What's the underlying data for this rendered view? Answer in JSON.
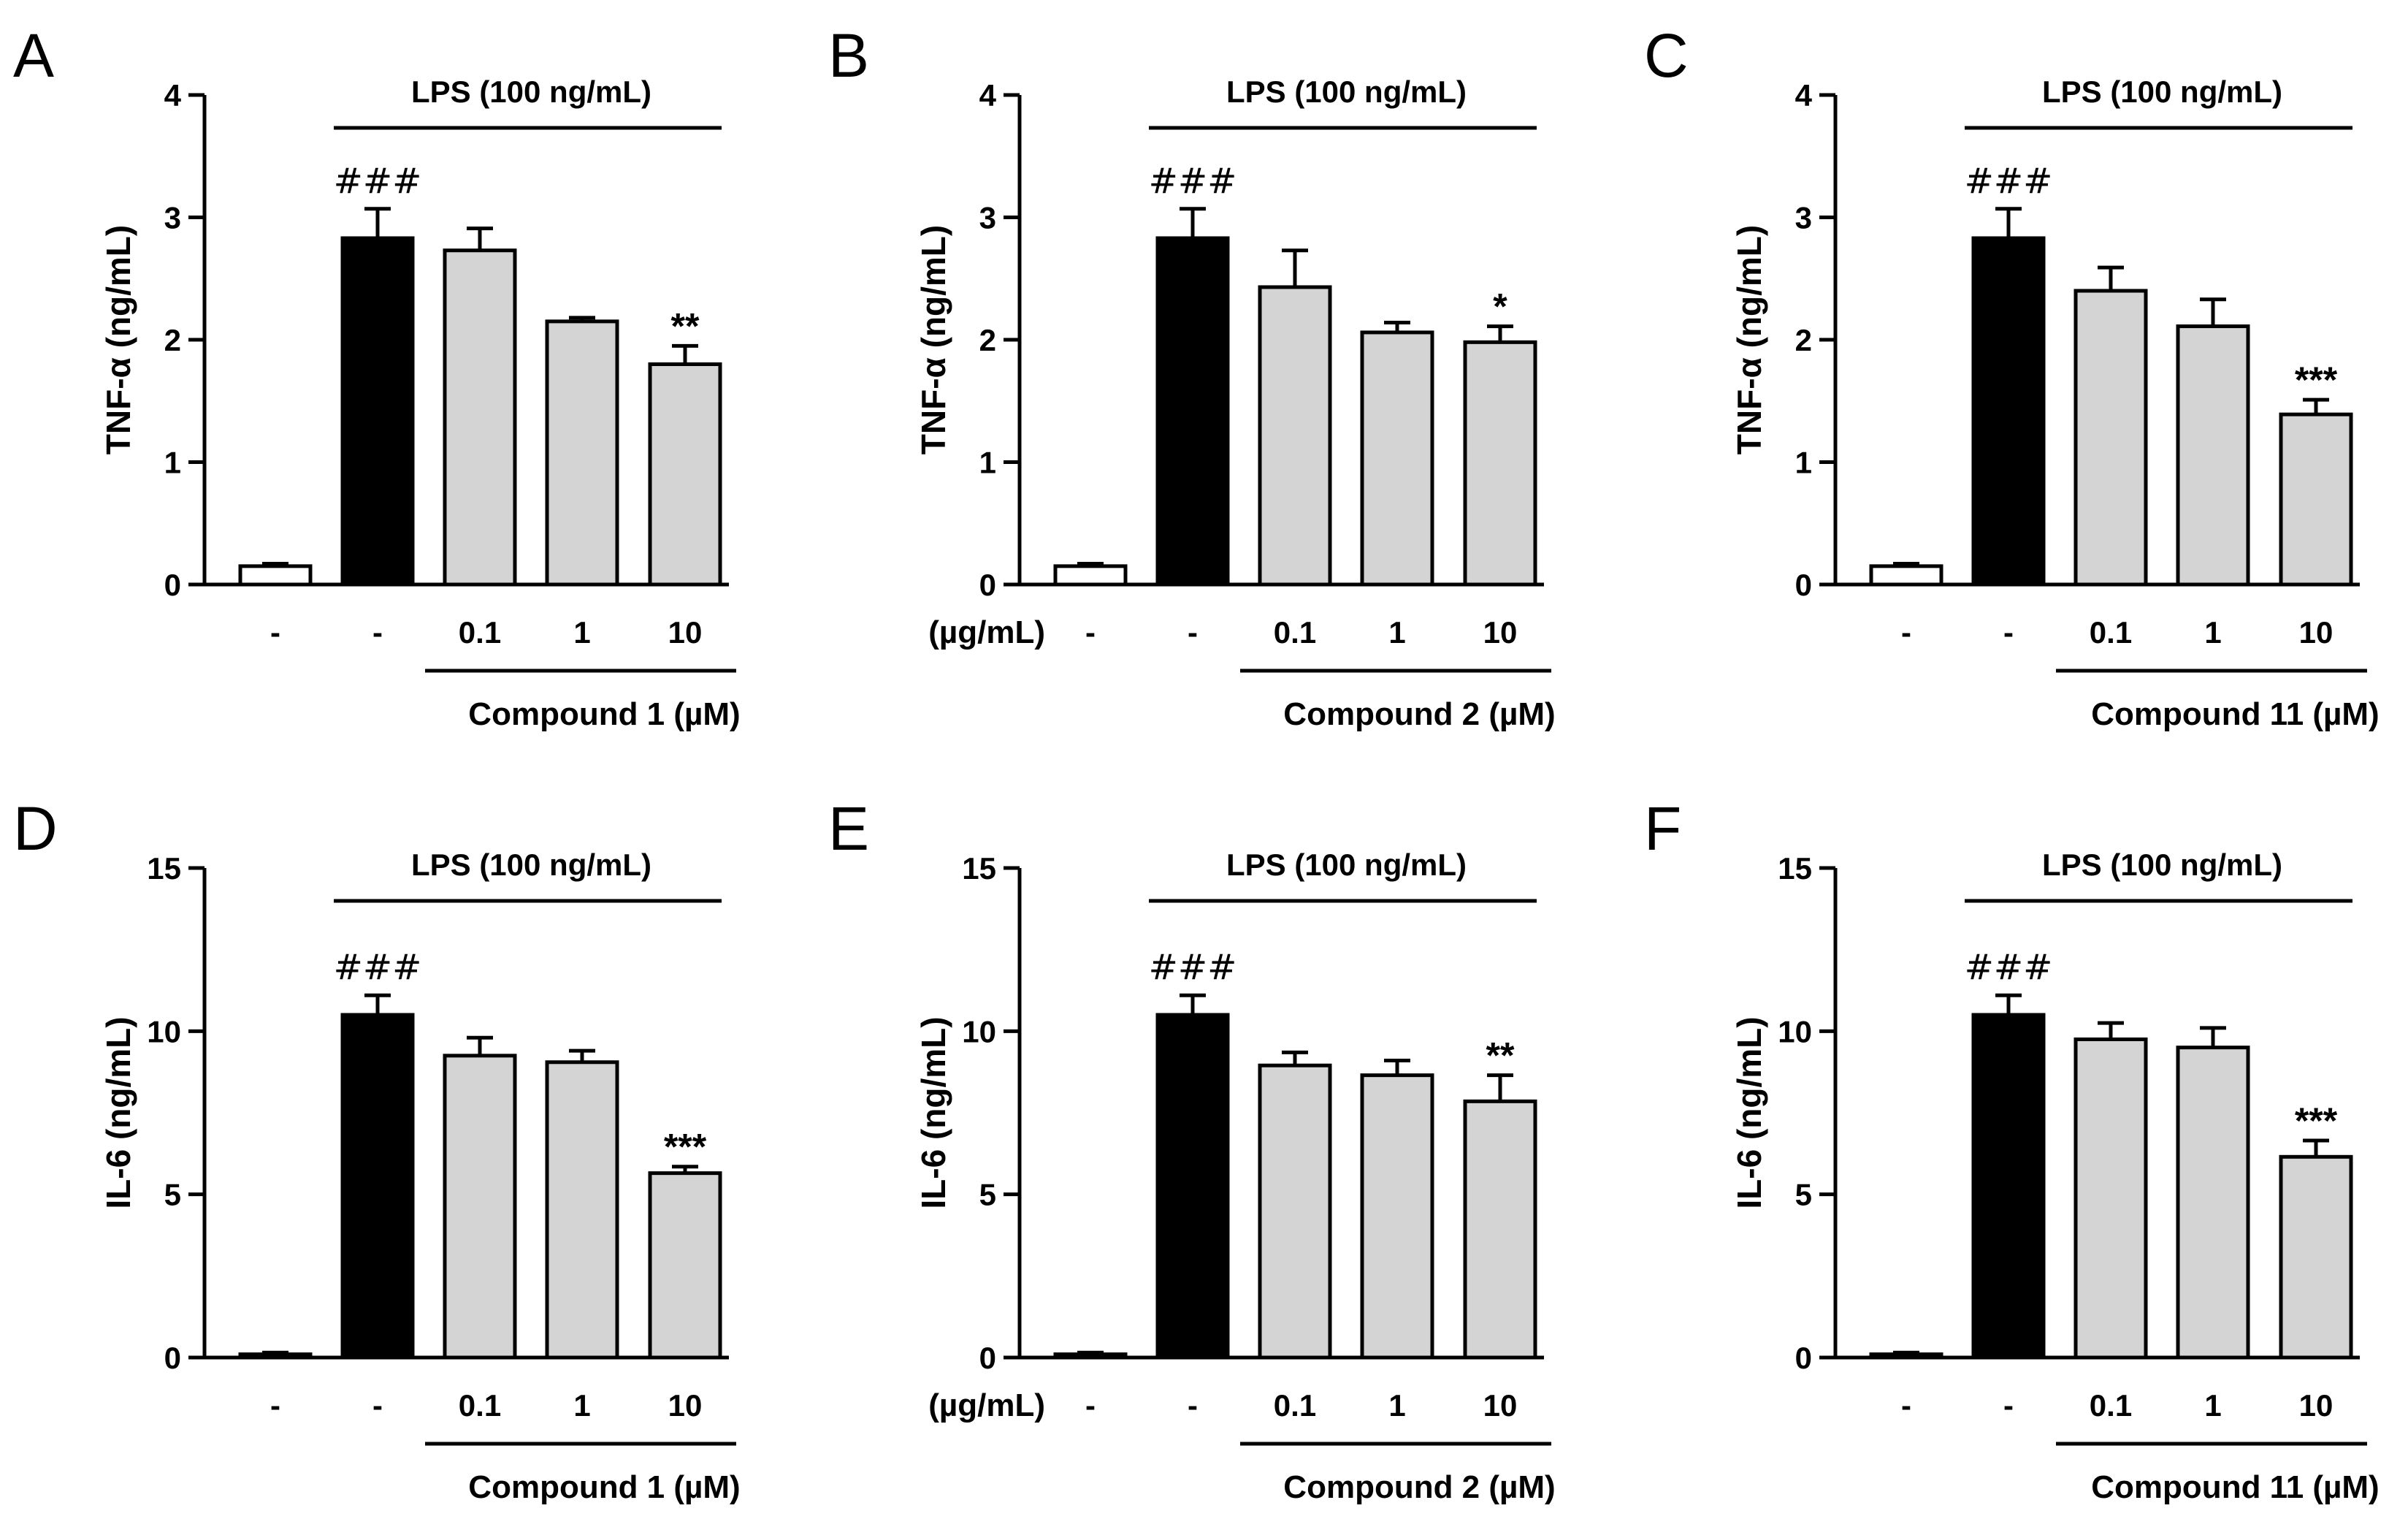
{
  "chart_data": [
    {
      "panel": "A",
      "type": "bar",
      "ylabel": "TNF-α (ng/mL)",
      "ylim": [
        0,
        4
      ],
      "yticks": [
        "0",
        "1",
        "2",
        "3",
        "4"
      ],
      "categories": [
        "-",
        "-",
        "0.1",
        "1",
        "10"
      ],
      "values": [
        0.15,
        2.83,
        2.73,
        2.15,
        1.8
      ],
      "errors": [
        0.02,
        0.24,
        0.18,
        0.03,
        0.15
      ],
      "bar_colors": [
        "#ffffff",
        "#000000",
        "#d4d4d4",
        "#d4d4d4",
        "#d4d4d4"
      ],
      "annotations": [
        "",
        "###",
        "",
        "",
        "**"
      ],
      "lps_label": "LPS (100 ng/mL)",
      "compound_label": "Compound 1 (µM)",
      "x_unit_label": ""
    },
    {
      "panel": "B",
      "type": "bar",
      "ylabel": "TNF-α (ng/mL)",
      "ylim": [
        0,
        4
      ],
      "yticks": [
        "0",
        "1",
        "2",
        "3",
        "4"
      ],
      "categories": [
        "-",
        "-",
        "0.1",
        "1",
        "10"
      ],
      "values": [
        0.15,
        2.83,
        2.43,
        2.06,
        1.98
      ],
      "errors": [
        0.02,
        0.24,
        0.3,
        0.08,
        0.13
      ],
      "bar_colors": [
        "#ffffff",
        "#000000",
        "#d4d4d4",
        "#d4d4d4",
        "#d4d4d4"
      ],
      "annotations": [
        "",
        "###",
        "",
        "",
        "*"
      ],
      "lps_label": "LPS (100 ng/mL)",
      "compound_label": "Compound 2 (µM)",
      "x_unit_label": "(µg/mL)"
    },
    {
      "panel": "C",
      "type": "bar",
      "ylabel": "TNF-α (ng/mL)",
      "ylim": [
        0,
        4
      ],
      "yticks": [
        "0",
        "1",
        "2",
        "3",
        "4"
      ],
      "categories": [
        "-",
        "-",
        "0.1",
        "1",
        "10"
      ],
      "values": [
        0.15,
        2.83,
        2.4,
        2.11,
        1.39
      ],
      "errors": [
        0.02,
        0.24,
        0.19,
        0.22,
        0.12
      ],
      "bar_colors": [
        "#ffffff",
        "#000000",
        "#d4d4d4",
        "#d4d4d4",
        "#d4d4d4"
      ],
      "annotations": [
        "",
        "###",
        "",
        "",
        "***"
      ],
      "lps_label": "LPS (100 ng/mL)",
      "compound_label": "Compound 11 (µM)",
      "x_unit_label": ""
    },
    {
      "panel": "D",
      "type": "bar",
      "ylabel": "IL-6 (ng/mL)",
      "ylim": [
        0,
        15
      ],
      "yticks": [
        "0",
        "5",
        "10",
        "15"
      ],
      "categories": [
        "-",
        "-",
        "0.1",
        "1",
        "10"
      ],
      "values": [
        0.1,
        10.5,
        9.25,
        9.05,
        5.65
      ],
      "errors": [
        0.05,
        0.6,
        0.55,
        0.35,
        0.2
      ],
      "bar_colors": [
        "#ffffff",
        "#000000",
        "#d4d4d4",
        "#d4d4d4",
        "#d4d4d4"
      ],
      "annotations": [
        "",
        "###",
        "",
        "",
        "***"
      ],
      "lps_label": "LPS (100 ng/mL)",
      "compound_label": "Compound 1 (µM)",
      "x_unit_label": ""
    },
    {
      "panel": "E",
      "type": "bar",
      "ylabel": "IL-6 (ng/mL)",
      "ylim": [
        0,
        15
      ],
      "yticks": [
        "0",
        "5",
        "10",
        "15"
      ],
      "categories": [
        "-",
        "-",
        "0.1",
        "1",
        "10"
      ],
      "values": [
        0.1,
        10.5,
        8.95,
        8.65,
        7.85
      ],
      "errors": [
        0.05,
        0.6,
        0.4,
        0.45,
        0.8
      ],
      "bar_colors": [
        "#ffffff",
        "#000000",
        "#d4d4d4",
        "#d4d4d4",
        "#d4d4d4"
      ],
      "annotations": [
        "",
        "###",
        "",
        "",
        "**"
      ],
      "lps_label": "LPS (100 ng/mL)",
      "compound_label": "Compound 2 (µM)",
      "x_unit_label": "(µg/mL)"
    },
    {
      "panel": "F",
      "type": "bar",
      "ylabel": "IL-6 (ng/mL)",
      "ylim": [
        0,
        15
      ],
      "yticks": [
        "0",
        "5",
        "10",
        "15"
      ],
      "categories": [
        "-",
        "-",
        "0.1",
        "1",
        "10"
      ],
      "values": [
        0.1,
        10.5,
        9.75,
        9.5,
        6.15
      ],
      "errors": [
        0.05,
        0.6,
        0.5,
        0.6,
        0.5
      ],
      "bar_colors": [
        "#ffffff",
        "#000000",
        "#d4d4d4",
        "#d4d4d4",
        "#d4d4d4"
      ],
      "annotations": [
        "",
        "###",
        "",
        "",
        "***"
      ],
      "lps_label": "LPS (100 ng/mL)",
      "compound_label": "Compound 11 (µM)",
      "x_unit_label": ""
    }
  ]
}
